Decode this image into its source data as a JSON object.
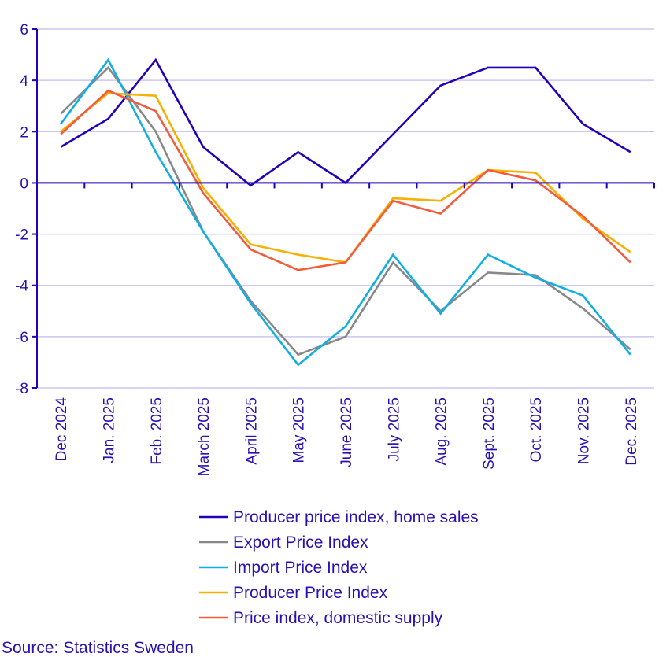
{
  "chart_data": {
    "type": "line",
    "title": "",
    "xlabel": "",
    "ylabel": "",
    "ylim": [
      -8,
      6
    ],
    "yticks": [
      6,
      4,
      2,
      0,
      -2,
      -4,
      -6,
      -8
    ],
    "grid": true,
    "legend_placement": "bottom",
    "categories": [
      "Dec 2024",
      "Jan. 2025",
      "Feb. 2025",
      "March 2025",
      "April 2025",
      "May 2025",
      "June 2025",
      "July 2025",
      "Aug. 2025",
      "Sept. 2025",
      "Oct. 2025",
      "Nov. 2025",
      "Dec. 2025"
    ],
    "series": [
      {
        "name": "Producer price index, home sales",
        "color": "#2400b8",
        "values": [
          1.4,
          2.5,
          4.8,
          1.4,
          -0.1,
          1.2,
          0.0,
          1.9,
          3.8,
          4.5,
          4.5,
          2.3,
          1.2
        ]
      },
      {
        "name": "Export Price Index",
        "color": "#888888",
        "values": [
          2.7,
          4.5,
          2.0,
          -1.9,
          -4.6,
          -6.7,
          -6.0,
          -3.1,
          -5.0,
          -3.5,
          -3.6,
          -4.9,
          -6.5
        ]
      },
      {
        "name": "Import Price Index",
        "color": "#11aee4",
        "values": [
          2.3,
          4.8,
          1.2,
          -1.9,
          -4.7,
          -7.1,
          -5.6,
          -2.8,
          -5.1,
          -2.8,
          -3.7,
          -4.4,
          -6.7
        ]
      },
      {
        "name": "Producer Price Index",
        "color": "#f7b000",
        "values": [
          2.0,
          3.5,
          3.4,
          -0.2,
          -2.4,
          -2.8,
          -3.1,
          -0.6,
          -0.7,
          0.5,
          0.4,
          -1.4,
          -2.7
        ]
      },
      {
        "name": "Price index, domestic supply",
        "color": "#f25c3b",
        "values": [
          1.9,
          3.6,
          2.8,
          -0.4,
          -2.6,
          -3.4,
          -3.1,
          -0.7,
          -1.2,
          0.5,
          0.1,
          -1.3,
          -3.1
        ]
      }
    ],
    "source": "Source: Statistics Sweden"
  }
}
